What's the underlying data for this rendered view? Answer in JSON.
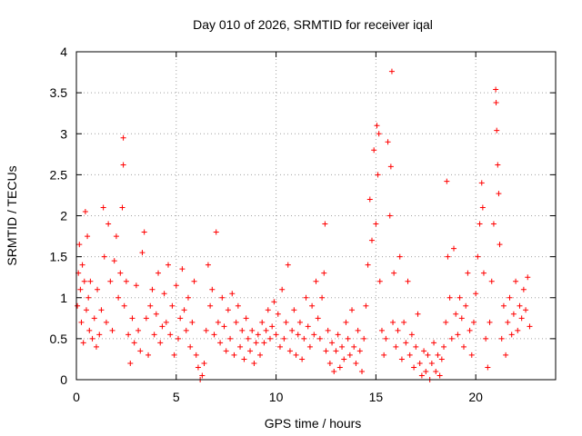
{
  "chart_data": {
    "type": "scatter",
    "title": "Day 010 of 2026, SRMTID for receiver iqal",
    "xlabel": "GPS time / hours",
    "ylabel": "SRMTID / TECUs",
    "xlim": [
      0,
      24
    ],
    "ylim": [
      0,
      4
    ],
    "xticks": [
      0,
      5,
      10,
      15,
      20
    ],
    "xtick_labels": [
      "0",
      "5",
      "10",
      "15",
      "20"
    ],
    "yticks": [
      0,
      0.5,
      1,
      1.5,
      2,
      2.5,
      3,
      3.5,
      4
    ],
    "ytick_labels": [
      "0",
      "0.5",
      "1",
      "1.5",
      "2",
      "2.5",
      "3",
      "3.5",
      "4"
    ],
    "grid": true,
    "marker": "+",
    "series": [
      {
        "name": "SRMTID",
        "color": "#ff0000",
        "points": [
          [
            0.05,
            0.9
          ],
          [
            0.1,
            1.3
          ],
          [
            0.15,
            1.65
          ],
          [
            0.2,
            1.1
          ],
          [
            0.25,
            0.7
          ],
          [
            0.3,
            1.4
          ],
          [
            0.35,
            0.45
          ],
          [
            0.4,
            1.2
          ],
          [
            0.45,
            2.05
          ],
          [
            0.5,
            0.85
          ],
          [
            0.55,
            1.75
          ],
          [
            0.6,
            1.0
          ],
          [
            0.65,
            0.6
          ],
          [
            0.7,
            1.2
          ],
          [
            0.8,
            0.5
          ],
          [
            0.9,
            0.75
          ],
          [
            1.0,
            0.4
          ],
          [
            1.05,
            1.1
          ],
          [
            1.15,
            0.55
          ],
          [
            1.25,
            0.85
          ],
          [
            1.35,
            2.1
          ],
          [
            1.4,
            1.5
          ],
          [
            1.5,
            0.7
          ],
          [
            1.6,
            1.9
          ],
          [
            1.7,
            1.2
          ],
          [
            1.8,
            0.6
          ],
          [
            1.9,
            1.45
          ],
          [
            2.0,
            1.75
          ],
          [
            2.1,
            1.0
          ],
          [
            2.2,
            1.3
          ],
          [
            2.3,
            2.1
          ],
          [
            2.35,
            2.95
          ],
          [
            2.35,
            2.62
          ],
          [
            2.4,
            0.9
          ],
          [
            2.5,
            1.2
          ],
          [
            2.6,
            0.55
          ],
          [
            2.7,
            0.2
          ],
          [
            2.8,
            0.75
          ],
          [
            2.9,
            0.45
          ],
          [
            3.0,
            1.15
          ],
          [
            3.1,
            0.6
          ],
          [
            3.2,
            0.35
          ],
          [
            3.3,
            1.55
          ],
          [
            3.4,
            1.8
          ],
          [
            3.5,
            0.75
          ],
          [
            3.6,
            0.3
          ],
          [
            3.7,
            0.9
          ],
          [
            3.8,
            1.1
          ],
          [
            3.9,
            0.55
          ],
          [
            4.0,
            0.8
          ],
          [
            4.1,
            1.3
          ],
          [
            4.2,
            0.45
          ],
          [
            4.3,
            0.65
          ],
          [
            4.4,
            1.05
          ],
          [
            4.5,
            0.7
          ],
          [
            4.6,
            1.4
          ],
          [
            4.7,
            0.55
          ],
          [
            4.8,
            0.9
          ],
          [
            4.9,
            0.3
          ],
          [
            5.0,
            1.15
          ],
          [
            5.1,
            0.5
          ],
          [
            5.2,
            0.75
          ],
          [
            5.3,
            1.35
          ],
          [
            5.4,
            0.85
          ],
          [
            5.5,
            0.6
          ],
          [
            5.6,
            1.0
          ],
          [
            5.7,
            0.4
          ],
          [
            5.8,
            0.7
          ],
          [
            5.9,
            1.2
          ],
          [
            6.0,
            0.3
          ],
          [
            6.1,
            0.15
          ],
          [
            6.2,
            0.0
          ],
          [
            6.3,
            0.05
          ],
          [
            6.4,
            0.2
          ],
          [
            6.5,
            0.6
          ],
          [
            6.6,
            1.4
          ],
          [
            6.7,
            0.9
          ],
          [
            6.8,
            1.1
          ],
          [
            6.9,
            0.55
          ],
          [
            7.0,
            1.8
          ],
          [
            7.1,
            0.7
          ],
          [
            7.2,
            0.45
          ],
          [
            7.3,
            1.0
          ],
          [
            7.4,
            0.65
          ],
          [
            7.5,
            0.35
          ],
          [
            7.6,
            0.85
          ],
          [
            7.7,
            0.5
          ],
          [
            7.8,
            1.05
          ],
          [
            7.9,
            0.3
          ],
          [
            8.0,
            0.7
          ],
          [
            8.1,
            0.9
          ],
          [
            8.2,
            0.4
          ],
          [
            8.3,
            0.6
          ],
          [
            8.4,
            0.25
          ],
          [
            8.5,
            0.75
          ],
          [
            8.6,
            0.5
          ],
          [
            8.7,
            0.35
          ],
          [
            8.8,
            0.6
          ],
          [
            8.9,
            0.2
          ],
          [
            9.0,
            0.45
          ],
          [
            9.1,
            0.55
          ],
          [
            9.2,
            0.3
          ],
          [
            9.3,
            0.7
          ],
          [
            9.4,
            0.45
          ],
          [
            9.5,
            0.6
          ],
          [
            9.6,
            0.85
          ],
          [
            9.7,
            0.5
          ],
          [
            9.8,
            0.65
          ],
          [
            9.9,
            0.95
          ],
          [
            10.0,
            0.55
          ],
          [
            10.1,
            0.8
          ],
          [
            10.2,
            0.4
          ],
          [
            10.3,
            1.1
          ],
          [
            10.4,
            0.5
          ],
          [
            10.5,
            0.7
          ],
          [
            10.6,
            1.4
          ],
          [
            10.7,
            0.35
          ],
          [
            10.8,
            0.6
          ],
          [
            10.9,
            0.85
          ],
          [
            11.0,
            0.3
          ],
          [
            11.1,
            0.55
          ],
          [
            11.2,
            0.7
          ],
          [
            11.3,
            0.25
          ],
          [
            11.4,
            0.5
          ],
          [
            11.5,
            1.0
          ],
          [
            11.6,
            0.65
          ],
          [
            11.7,
            0.4
          ],
          [
            11.8,
            0.9
          ],
          [
            11.9,
            0.55
          ],
          [
            12.0,
            1.2
          ],
          [
            12.1,
            0.75
          ],
          [
            12.2,
            0.5
          ],
          [
            12.3,
            1.0
          ],
          [
            12.4,
            1.3
          ],
          [
            12.45,
            1.9
          ],
          [
            12.5,
            0.35
          ],
          [
            12.6,
            0.6
          ],
          [
            12.7,
            0.2
          ],
          [
            12.8,
            0.45
          ],
          [
            12.9,
            0.1
          ],
          [
            13.0,
            0.35
          ],
          [
            13.1,
            0.55
          ],
          [
            13.2,
            0.15
          ],
          [
            13.3,
            0.4
          ],
          [
            13.4,
            0.25
          ],
          [
            13.5,
            0.7
          ],
          [
            13.6,
            0.5
          ],
          [
            13.7,
            0.3
          ],
          [
            13.8,
            0.85
          ],
          [
            13.9,
            0.4
          ],
          [
            14.0,
            0.2
          ],
          [
            14.1,
            0.6
          ],
          [
            14.2,
            0.35
          ],
          [
            14.3,
            0.1
          ],
          [
            14.4,
            0.5
          ],
          [
            14.5,
            0.9
          ],
          [
            14.6,
            1.4
          ],
          [
            14.7,
            2.2
          ],
          [
            14.8,
            1.7
          ],
          [
            14.9,
            2.8
          ],
          [
            15.0,
            1.9
          ],
          [
            15.05,
            3.1
          ],
          [
            15.1,
            2.5
          ],
          [
            15.15,
            3.0
          ],
          [
            15.2,
            1.2
          ],
          [
            15.3,
            0.6
          ],
          [
            15.4,
            0.3
          ],
          [
            15.5,
            0.5
          ],
          [
            15.6,
            2.9
          ],
          [
            15.7,
            2.0
          ],
          [
            15.75,
            2.6
          ],
          [
            15.8,
            3.76
          ],
          [
            15.85,
            0.7
          ],
          [
            15.9,
            1.3
          ],
          [
            16.0,
            0.4
          ],
          [
            16.1,
            0.6
          ],
          [
            16.2,
            1.5
          ],
          [
            16.3,
            0.25
          ],
          [
            16.4,
            0.7
          ],
          [
            16.5,
            0.45
          ],
          [
            16.6,
            1.2
          ],
          [
            16.7,
            0.3
          ],
          [
            16.8,
            0.55
          ],
          [
            16.9,
            0.15
          ],
          [
            17.0,
            0.4
          ],
          [
            17.1,
            0.8
          ],
          [
            17.2,
            0.2
          ],
          [
            17.3,
            0.05
          ],
          [
            17.4,
            0.35
          ],
          [
            17.5,
            0.1
          ],
          [
            17.6,
            0.3
          ],
          [
            17.7,
            0.0
          ],
          [
            17.8,
            0.2
          ],
          [
            17.9,
            0.45
          ],
          [
            18.0,
            0.1
          ],
          [
            18.1,
            0.3
          ],
          [
            18.2,
            0.05
          ],
          [
            18.3,
            0.25
          ],
          [
            18.4,
            0.4
          ],
          [
            18.5,
            0.7
          ],
          [
            18.55,
            2.42
          ],
          [
            18.6,
            1.5
          ],
          [
            18.7,
            1.0
          ],
          [
            18.8,
            0.5
          ],
          [
            18.9,
            1.6
          ],
          [
            19.0,
            0.8
          ],
          [
            19.1,
            0.55
          ],
          [
            19.2,
            1.0
          ],
          [
            19.3,
            0.75
          ],
          [
            19.4,
            0.4
          ],
          [
            19.5,
            0.9
          ],
          [
            19.6,
            1.3
          ],
          [
            19.7,
            0.6
          ],
          [
            19.8,
            0.3
          ],
          [
            19.9,
            0.7
          ],
          [
            20.0,
            1.05
          ],
          [
            20.1,
            1.5
          ],
          [
            20.2,
            1.9
          ],
          [
            20.3,
            2.4
          ],
          [
            20.35,
            2.1
          ],
          [
            20.4,
            1.3
          ],
          [
            20.5,
            0.5
          ],
          [
            20.6,
            0.15
          ],
          [
            20.7,
            0.7
          ],
          [
            20.8,
            1.2
          ],
          [
            20.9,
            1.9
          ],
          [
            21.0,
            3.54
          ],
          [
            21.02,
            3.38
          ],
          [
            21.05,
            3.04
          ],
          [
            21.1,
            2.62
          ],
          [
            21.15,
            2.27
          ],
          [
            21.2,
            1.65
          ],
          [
            21.3,
            0.5
          ],
          [
            21.4,
            0.9
          ],
          [
            21.5,
            0.3
          ],
          [
            21.6,
            0.7
          ],
          [
            21.7,
            1.0
          ],
          [
            21.8,
            0.55
          ],
          [
            21.9,
            0.8
          ],
          [
            22.0,
            1.2
          ],
          [
            22.1,
            0.6
          ],
          [
            22.2,
            0.9
          ],
          [
            22.3,
            0.75
          ],
          [
            22.4,
            1.1
          ],
          [
            22.5,
            0.85
          ],
          [
            22.6,
            1.25
          ],
          [
            22.7,
            0.65
          ]
        ]
      }
    ]
  }
}
